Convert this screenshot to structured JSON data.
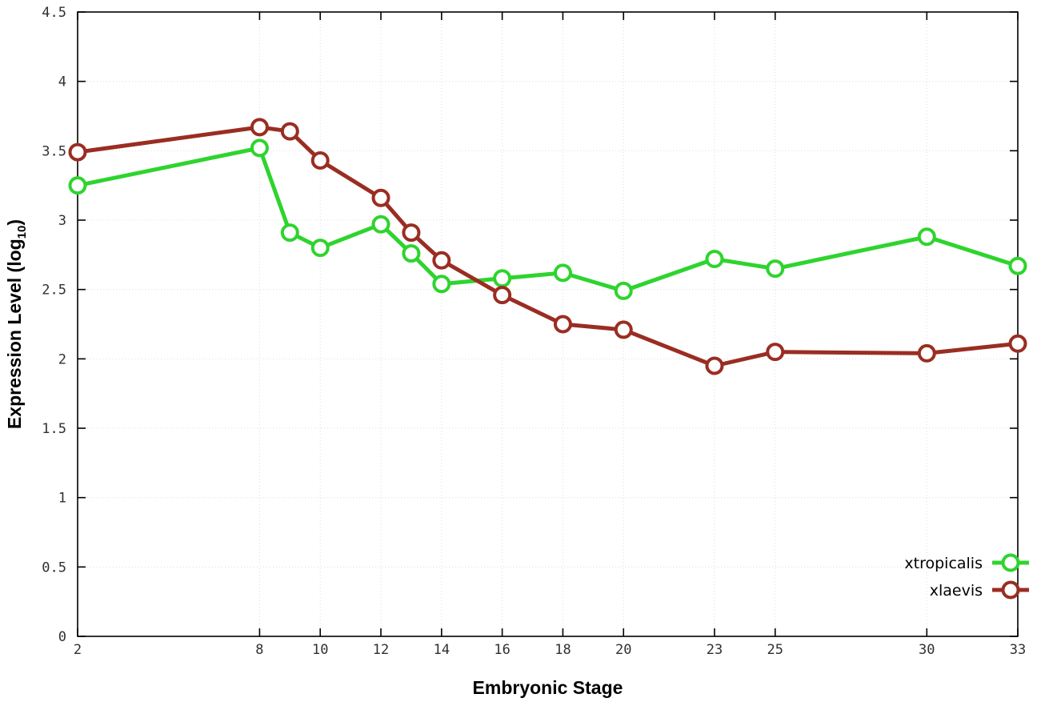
{
  "chart_data": {
    "type": "line",
    "title": "",
    "xlabel": "Embryonic Stage",
    "ylabel": "Expression Level (log10)",
    "x": [
      2,
      8,
      9,
      10,
      12,
      13,
      14,
      16,
      18,
      20,
      23,
      25,
      30,
      33
    ],
    "series": [
      {
        "name": "xtropicalis",
        "color": "#2ed42e",
        "values": [
          3.25,
          3.52,
          2.91,
          2.8,
          2.97,
          2.76,
          2.54,
          2.58,
          2.62,
          2.49,
          2.72,
          2.65,
          2.88,
          2.67
        ]
      },
      {
        "name": "xlaevis",
        "color": "#9a2d22",
        "values": [
          3.49,
          3.67,
          3.64,
          3.43,
          3.16,
          2.91,
          2.71,
          2.46,
          2.25,
          2.21,
          1.95,
          2.05,
          2.04,
          2.11
        ]
      }
    ],
    "xlim": [
      2,
      33
    ],
    "ylim": [
      0,
      4.5
    ],
    "xticks": {
      "values": [
        2,
        8,
        10,
        12,
        14,
        16,
        18,
        20,
        23,
        25,
        30,
        33
      ],
      "labels": [
        "2",
        "8",
        "10",
        "12",
        "14",
        "16",
        "18",
        "20",
        "23",
        "25",
        "30",
        "33"
      ]
    },
    "yticks": {
      "values": [
        0,
        0.5,
        1,
        1.5,
        2,
        2.5,
        3,
        3.5,
        4,
        4.5
      ],
      "labels": [
        "0",
        "0.5",
        "1",
        "1.5",
        "2",
        "2.5",
        "3",
        "3.5",
        "4",
        "4.5"
      ]
    },
    "grid": true,
    "legend_position": "bottom-right",
    "legend_entries": [
      "xtropicalis",
      "xlaevis"
    ]
  }
}
